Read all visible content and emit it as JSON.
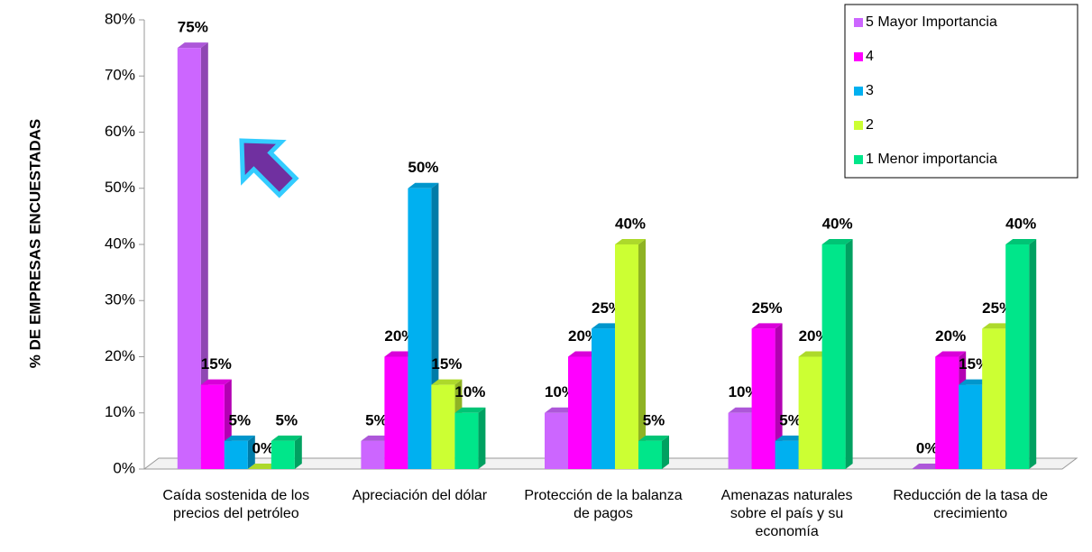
{
  "chart_data": {
    "type": "bar3d",
    "y_label": "% DE EMPRESAS ENCUESTADAS",
    "categories": [
      "Caída sostenida de los precios del petróleo",
      "Apreciación del dólar",
      "Protección de la balanza de pagos",
      "Amenazas naturales sobre el país y su economía",
      "Reducción de la tasa de crecimiento"
    ],
    "series": [
      {
        "name": "5 Mayor Importancia",
        "color": "#cc66ff",
        "values": [
          75,
          5,
          10,
          10,
          0
        ],
        "value_labels": [
          "75%",
          "5%",
          "10%",
          "10%",
          "0%"
        ]
      },
      {
        "name": "4",
        "color": "#ff00ff",
        "values": [
          15,
          20,
          20,
          25,
          20
        ],
        "value_labels": [
          "15%",
          "20%",
          "20%",
          "25%",
          "20%"
        ]
      },
      {
        "name": "3",
        "color": "#00b0f0",
        "values": [
          5,
          50,
          25,
          5,
          15
        ],
        "value_labels": [
          "5%",
          "50%",
          "25%",
          "5%",
          "15%"
        ]
      },
      {
        "name": "2",
        "color": "#ccff33",
        "values": [
          0,
          15,
          40,
          20,
          25
        ],
        "value_labels": [
          "0%",
          "15%",
          "40%",
          "20%",
          "25%"
        ]
      },
      {
        "name": "1 Menor importancia",
        "color": "#00e68a",
        "values": [
          5,
          10,
          5,
          40,
          40
        ],
        "value_labels": [
          "5%",
          "10%",
          "5%",
          "40%",
          "40%"
        ]
      }
    ],
    "ylim": [
      0,
      80
    ],
    "yticks": [
      {
        "value": 0,
        "label": "0%"
      },
      {
        "value": 10,
        "label": "10%"
      },
      {
        "value": 20,
        "label": "20%"
      },
      {
        "value": 30,
        "label": "30%"
      },
      {
        "value": 40,
        "label": "40%"
      },
      {
        "value": 50,
        "label": "50%"
      },
      {
        "value": 60,
        "label": "60%"
      },
      {
        "value": 70,
        "label": "70%"
      },
      {
        "value": 80,
        "label": "80%"
      }
    ],
    "legend": "top-right"
  }
}
